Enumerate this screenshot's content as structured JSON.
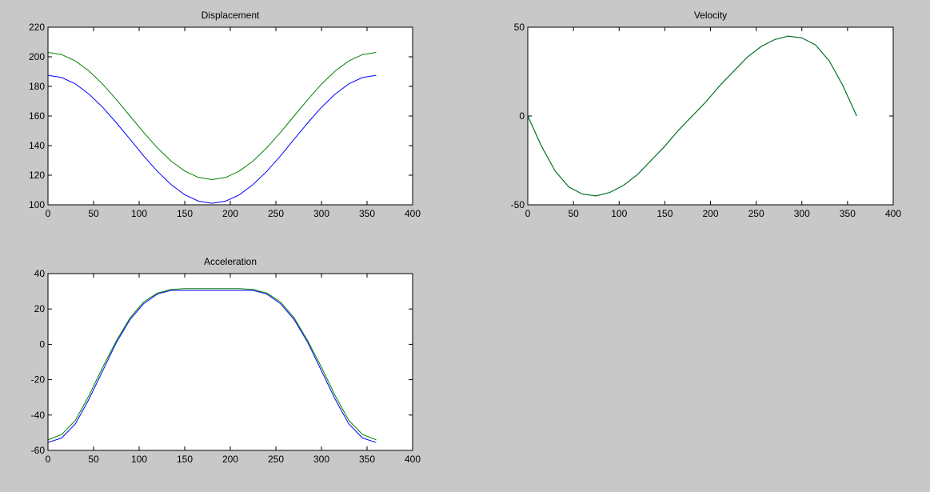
{
  "chart_data": [
    {
      "type": "line",
      "title": "Displacement",
      "x": [
        0,
        15,
        30,
        45,
        60,
        75,
        90,
        105,
        120,
        135,
        150,
        165,
        180,
        195,
        210,
        225,
        240,
        255,
        270,
        285,
        300,
        315,
        330,
        345,
        360
      ],
      "series": [
        {
          "color": "#0000ff",
          "values": [
            187.5,
            186.0,
            181.7,
            174.8,
            165.9,
            155.4,
            144.3,
            133.0,
            122.6,
            113.7,
            106.8,
            102.5,
            101.0,
            102.5,
            106.8,
            113.7,
            122.6,
            133.0,
            144.3,
            155.4,
            165.9,
            174.8,
            181.7,
            186.0,
            187.5
          ]
        },
        {
          "color": "#008000",
          "values": [
            203,
            201.5,
            197.2,
            190.4,
            181.5,
            171.1,
            160,
            148.9,
            138.5,
            129.6,
            122.8,
            118.5,
            117,
            118.5,
            122.8,
            129.6,
            138.5,
            148.9,
            160,
            171.1,
            181.5,
            190.4,
            197.2,
            201.5,
            203
          ]
        }
      ],
      "xlim": [
        0,
        400
      ],
      "xticks": [
        0,
        50,
        100,
        150,
        200,
        250,
        300,
        350,
        400
      ],
      "ylim": [
        100,
        220
      ],
      "yticks": [
        100,
        120,
        140,
        160,
        180,
        200,
        220
      ]
    },
    {
      "type": "line",
      "title": "Velocity",
      "x": [
        0,
        15,
        30,
        45,
        60,
        75,
        90,
        105,
        120,
        135,
        150,
        165,
        180,
        195,
        210,
        225,
        240,
        255,
        270,
        285,
        300,
        315,
        330,
        345,
        360
      ],
      "series": [
        {
          "color": "#0000ff",
          "values": [
            0,
            -17,
            -31,
            -40,
            -44,
            -45,
            -43,
            -39,
            -33,
            -25,
            -17,
            -8,
            0,
            8,
            17,
            25,
            33,
            39,
            43,
            45,
            44,
            40,
            31,
            17,
            0
          ]
        },
        {
          "color": "#008000",
          "values": [
            0,
            -17,
            -31,
            -40,
            -44,
            -45,
            -43,
            -39,
            -33,
            -25,
            -17,
            -8,
            0,
            8,
            17,
            25,
            33,
            39,
            43,
            45,
            44,
            40,
            31,
            17,
            0
          ]
        }
      ],
      "xlim": [
        0,
        400
      ],
      "xticks": [
        0,
        50,
        100,
        150,
        200,
        250,
        300,
        350,
        400
      ],
      "ylim": [
        -50,
        50
      ],
      "yticks": [
        -50,
        0,
        50
      ]
    },
    {
      "type": "line",
      "title": "Acceleration",
      "x": [
        0,
        15,
        30,
        45,
        60,
        75,
        90,
        105,
        120,
        135,
        150,
        165,
        180,
        195,
        210,
        225,
        240,
        255,
        270,
        285,
        300,
        315,
        330,
        345,
        360
      ],
      "series": [
        {
          "color": "#0000ff",
          "values": [
            -55.5,
            -53,
            -45,
            -31,
            -15,
            1,
            14,
            23,
            28.5,
            30.5,
            30.5,
            30.5,
            30.5,
            30.5,
            30.5,
            30.5,
            28.5,
            23,
            14,
            1,
            -15,
            -31,
            -45,
            -53,
            -55.5
          ]
        },
        {
          "color": "#008000",
          "values": [
            -54,
            -51,
            -43,
            -29,
            -13,
            2,
            15,
            24,
            29,
            31,
            31.5,
            31.5,
            31.5,
            31.5,
            31.5,
            31,
            29,
            24,
            15,
            2,
            -13,
            -29,
            -43,
            -51,
            -54
          ]
        }
      ],
      "xlim": [
        0,
        400
      ],
      "xticks": [
        0,
        50,
        100,
        150,
        200,
        250,
        300,
        350,
        400
      ],
      "ylim": [
        -60,
        40
      ],
      "yticks": [
        -60,
        -40,
        -20,
        0,
        20,
        40
      ]
    }
  ]
}
